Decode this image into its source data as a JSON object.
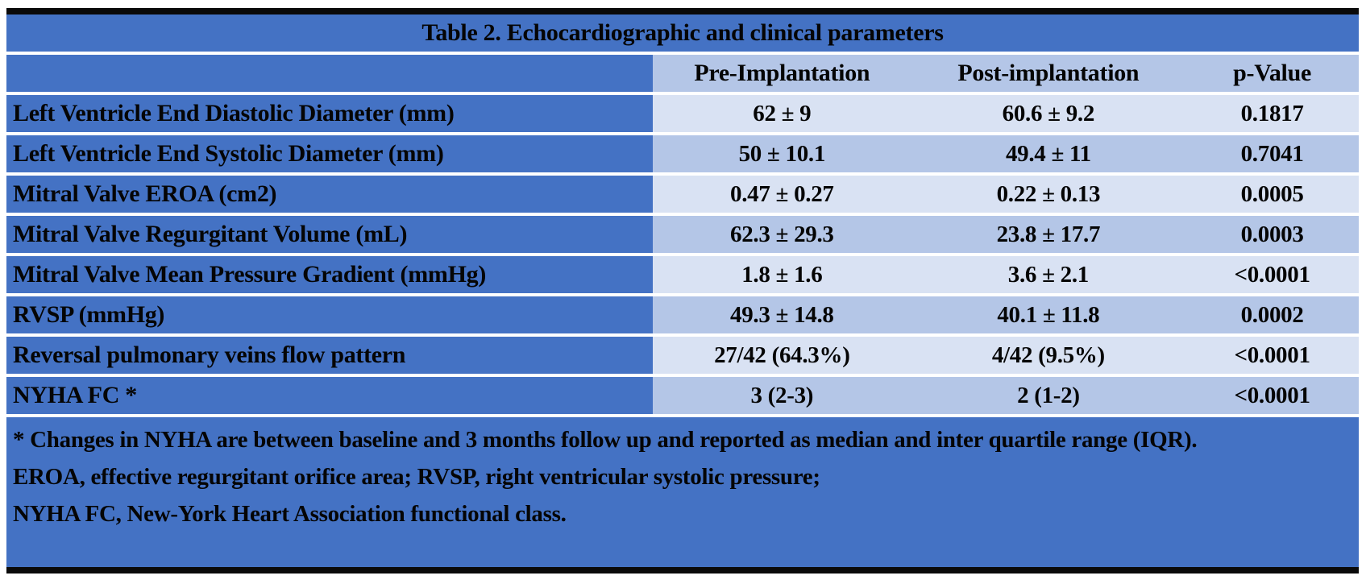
{
  "table": {
    "title": "Table 2. Echocardiographic and clinical parameters",
    "columns": [
      "",
      "Pre-Implantation",
      "Post-implantation",
      "p-Value"
    ],
    "rows": [
      {
        "label": "Left Ventricle End Diastolic Diameter (mm)",
        "pre": "62 ± 9",
        "post": "60.6 ± 9.2",
        "p": "0.1817"
      },
      {
        "label": "Left Ventricle End Systolic Diameter (mm)",
        "pre": "50 ± 10.1",
        "post": "49.4 ± 11",
        "p": "0.7041"
      },
      {
        "label": "Mitral Valve EROA (cm2)",
        "pre": "0.47 ± 0.27",
        "post": "0.22 ± 0.13",
        "p": "0.0005"
      },
      {
        "label": "Mitral Valve Regurgitant Volume (mL)",
        "pre": "62.3 ± 29.3",
        "post": "23.8 ± 17.7",
        "p": "0.0003"
      },
      {
        "label": "Mitral Valve Mean Pressure Gradient (mmHg)",
        "pre": "1.8 ± 1.6",
        "post": "3.6 ± 2.1",
        "p": "<0.0001"
      },
      {
        "label": "RVSP (mmHg)",
        "pre": "49.3 ± 14.8",
        "post": "40.1 ± 11.8",
        "p": "0.0002"
      },
      {
        "label": "Reversal pulmonary veins flow pattern",
        "pre": "27/42 (64.3%)",
        "post": "4/42 (9.5%)",
        "p": "<0.0001"
      },
      {
        "label": "NYHA FC *",
        "pre": "3 (2-3)",
        "post": "2 (1-2)",
        "p": "<0.0001"
      }
    ],
    "footnotes": [
      "* Changes in NYHA are between baseline and 3 months follow up and reported as median and inter quartile range (IQR).",
      "EROA, effective regurgitant orifice area; RVSP, right ventricular systolic pressure;",
      "NYHA FC, New-York Heart Association functional class."
    ],
    "colors": {
      "accent_blue": "#4472C4",
      "band_mid": "#B4C6E7",
      "band_light": "#D9E2F3",
      "border_black": "#0A0A0A",
      "text": "#050505"
    }
  }
}
